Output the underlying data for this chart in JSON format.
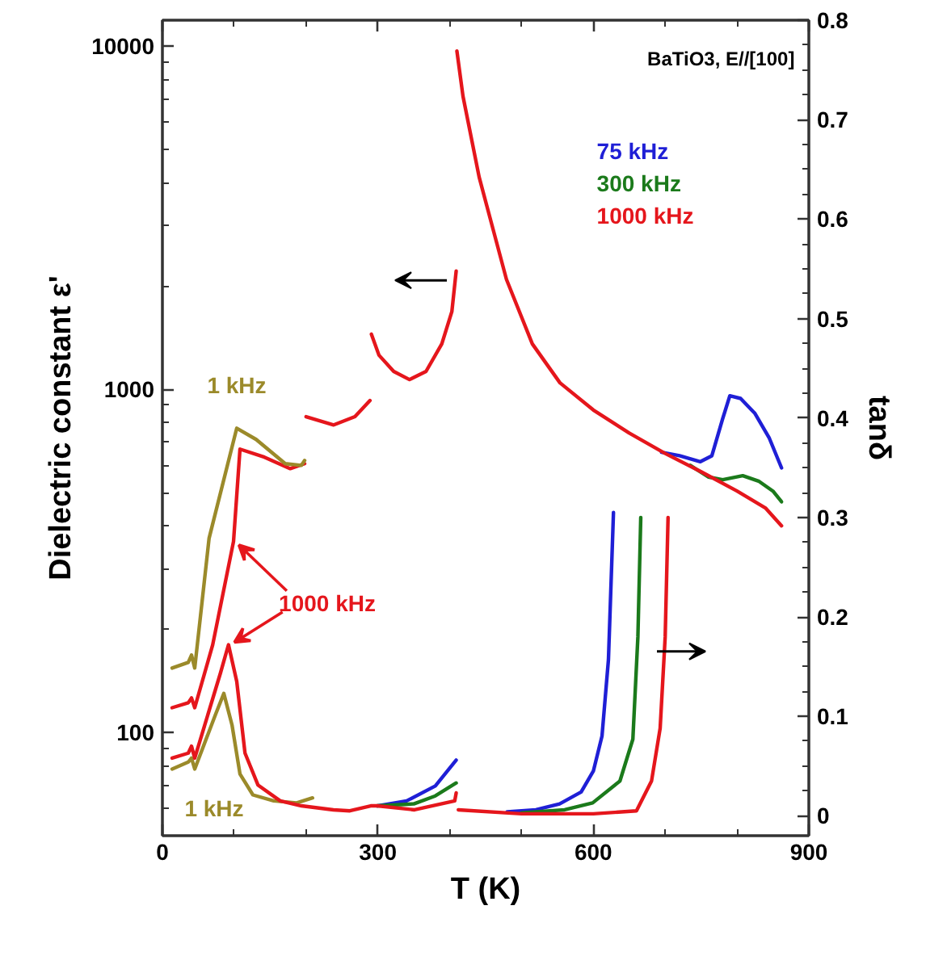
{
  "chart_data": {
    "type": "line",
    "xlabel": "T (K)",
    "ylabel": "Dielectric constant ε'",
    "y2label": "tanδ",
    "xlim": [
      0,
      900
    ],
    "xticks": [
      0,
      {
        "value": 100,
        "label": null
      },
      {
        "value": 200,
        "label": null
      },
      300,
      {
        "value": 400,
        "label": null
      },
      {
        "value": 500,
        "label": null
      },
      600,
      {
        "value": 700,
        "label": null
      },
      {
        "value": 800,
        "label": null
      },
      900
    ],
    "ylim": [
      50,
      11900
    ],
    "yticks": [
      {
        "value": 60,
        "label": null
      },
      {
        "value": 70,
        "label": null
      },
      {
        "value": 80,
        "label": null
      },
      {
        "value": 90,
        "label": null
      },
      100,
      {
        "value": 200,
        "label": null
      },
      {
        "value": 300,
        "label": null
      },
      {
        "value": 400,
        "label": null
      },
      {
        "value": 500,
        "label": null
      },
      {
        "value": 600,
        "label": null
      },
      {
        "value": 700,
        "label": null
      },
      {
        "value": 800,
        "label": null
      },
      {
        "value": 900,
        "label": null
      },
      1000,
      {
        "value": 2000,
        "label": null
      },
      {
        "value": 3000,
        "label": null
      },
      {
        "value": 4000,
        "label": null
      },
      {
        "value": 5000,
        "label": null
      },
      {
        "value": 6000,
        "label": null
      },
      {
        "value": 7000,
        "label": null
      },
      {
        "value": 8000,
        "label": null
      },
      {
        "value": 9000,
        "label": null
      },
      10000
    ],
    "y2lim": [
      -0.02,
      0.8
    ],
    "y2ticks": [
      0,
      {
        "value": 0.025,
        "label": null
      },
      {
        "value": 0.05,
        "label": null
      },
      {
        "value": 0.075,
        "label": null
      },
      0.1,
      {
        "value": 0.125,
        "label": null
      },
      {
        "value": 0.15,
        "label": null
      },
      {
        "value": 0.175,
        "label": null
      },
      0.2,
      {
        "value": 0.225,
        "label": null
      },
      {
        "value": 0.25,
        "label": null
      },
      {
        "value": 0.275,
        "label": null
      },
      0.3,
      {
        "value": 0.325,
        "label": null
      },
      {
        "value": 0.35,
        "label": null
      },
      {
        "value": 0.375,
        "label": null
      },
      0.4,
      {
        "value": 0.425,
        "label": null
      },
      {
        "value": 0.45,
        "label": null
      },
      {
        "value": 0.475,
        "label": null
      },
      0.5,
      {
        "value": 0.525,
        "label": null
      },
      {
        "value": 0.55,
        "label": null
      },
      {
        "value": 0.575,
        "label": null
      },
      0.6,
      {
        "value": 0.625,
        "label": null
      },
      {
        "value": 0.65,
        "label": null
      },
      {
        "value": 0.675,
        "label": null
      },
      0.7,
      {
        "value": 0.725,
        "label": null
      },
      {
        "value": 0.75,
        "label": null
      },
      {
        "value": 0.775,
        "label": null
      },
      0.8
    ],
    "log": "y",
    "legend": "top right",
    "series": [
      {
        "name": "75 kHz",
        "color": "#1f1fd6",
        "x": [
          695,
          720,
          749,
          765,
          780,
          790,
          805,
          825,
          845,
          862
        ],
        "values": [
          655,
          640,
          615,
          640,
          820,
          957,
          940,
          850,
          720,
          590
        ]
      },
      {
        "name": "300 kHz",
        "color": "#1b7a1b",
        "x": [
          735,
          760,
          780,
          808,
          830,
          850,
          862
        ],
        "values": [
          600,
          555,
          545,
          560,
          540,
          505,
          470
        ]
      },
      {
        "name": "1000 kHz",
        "color": "#e5161c",
        "x": [
          13.5,
          36,
          40.5,
          45,
          70,
          99,
          108,
          142,
          178,
          198,
          199,
          200,
          238.5,
          268,
          289,
          290,
          291,
          301.5,
          322,
          344,
          367,
          389,
          403,
          409,
          409.5,
          410,
          418.5,
          441,
          479,
          515,
          553.5,
          600,
          650,
          700,
          750,
          800,
          840,
          862
        ],
        "values": [
          118,
          122,
          126,
          118,
          180,
          360,
          669,
          634,
          587,
          607,
          null,
          832,
          787,
          832,
          927,
          null,
          1447,
          1257,
          1127,
          1067,
          1127,
          1356,
          1684,
          2209,
          null,
          9680,
          7140,
          4150,
          2090,
          1356,
          1044,
          870,
          745,
          650,
          575,
          505,
          450,
          400
        ]
      },
      {
        "color": "#9b8a2a",
        "x": [
          13.5,
          36,
          40.5,
          45,
          65,
          103.5,
          130.5,
          171,
          193.5,
          198
        ],
        "values": [
          154,
          160,
          168,
          154,
          368,
          770,
          714,
          607,
          600,
          620
        ]
      },
      {
        "color": "#9b8a2a",
        "axis": "y2",
        "x": [
          13.5,
          36,
          40.5,
          45,
          74,
          85.5,
          97,
          108,
          126,
          155,
          187,
          209
        ],
        "values": [
          0.047,
          0.054,
          0.058,
          0.047,
          0.102,
          0.123,
          0.091,
          0.042,
          0.021,
          0.015,
          0.013,
          0.018
        ]
      },
      {
        "color": "#1f1fd6",
        "axis": "y2",
        "x": [
          299,
          340,
          380,
          409,
          410,
          412,
          480,
          520,
          553,
          583,
          600,
          612,
          621,
          628
        ],
        "values": [
          0.01,
          0.015,
          0.03,
          0.056,
          null,
          null,
          0.004,
          0.006,
          0.012,
          0.024,
          0.045,
          0.08,
          0.157,
          0.305
        ]
      },
      {
        "color": "#1b7a1b",
        "axis": "y2",
        "x": [
          299,
          350,
          380,
          409,
          410,
          412,
          500,
          560,
          599,
          637,
          655,
          662,
          666
        ],
        "values": [
          0.01,
          0.012,
          0.02,
          0.033,
          null,
          null,
          0.003,
          0.006,
          0.013,
          0.035,
          0.077,
          0.18,
          0.3
        ]
      },
      {
        "color": "#e5161c",
        "axis": "y2",
        "x": [
          13.5,
          36,
          40.5,
          45,
          81,
          92,
          103.5,
          115,
          133,
          164,
          193.5,
          238,
          261,
          290,
          299,
          351,
          407,
          409,
          410,
          412,
          500,
          600,
          660,
          681,
          693,
          700,
          704
        ],
        "values": [
          0.058,
          0.063,
          0.07,
          0.058,
          0.144,
          0.172,
          0.135,
          0.063,
          0.031,
          0.015,
          0.01,
          0.006,
          0.005,
          0.01,
          0.01,
          0.006,
          0.015,
          0.023,
          null,
          0.006,
          0.002,
          0.002,
          0.005,
          0.035,
          0.088,
          0.18,
          0.3
        ]
      }
    ],
    "annotations": [
      "BaTiO3, E//[100]",
      "1 kHz",
      "1 kHz",
      {
        "text": "1000 kHz",
        "x": 99,
        "y": 360
      }
    ]
  }
}
